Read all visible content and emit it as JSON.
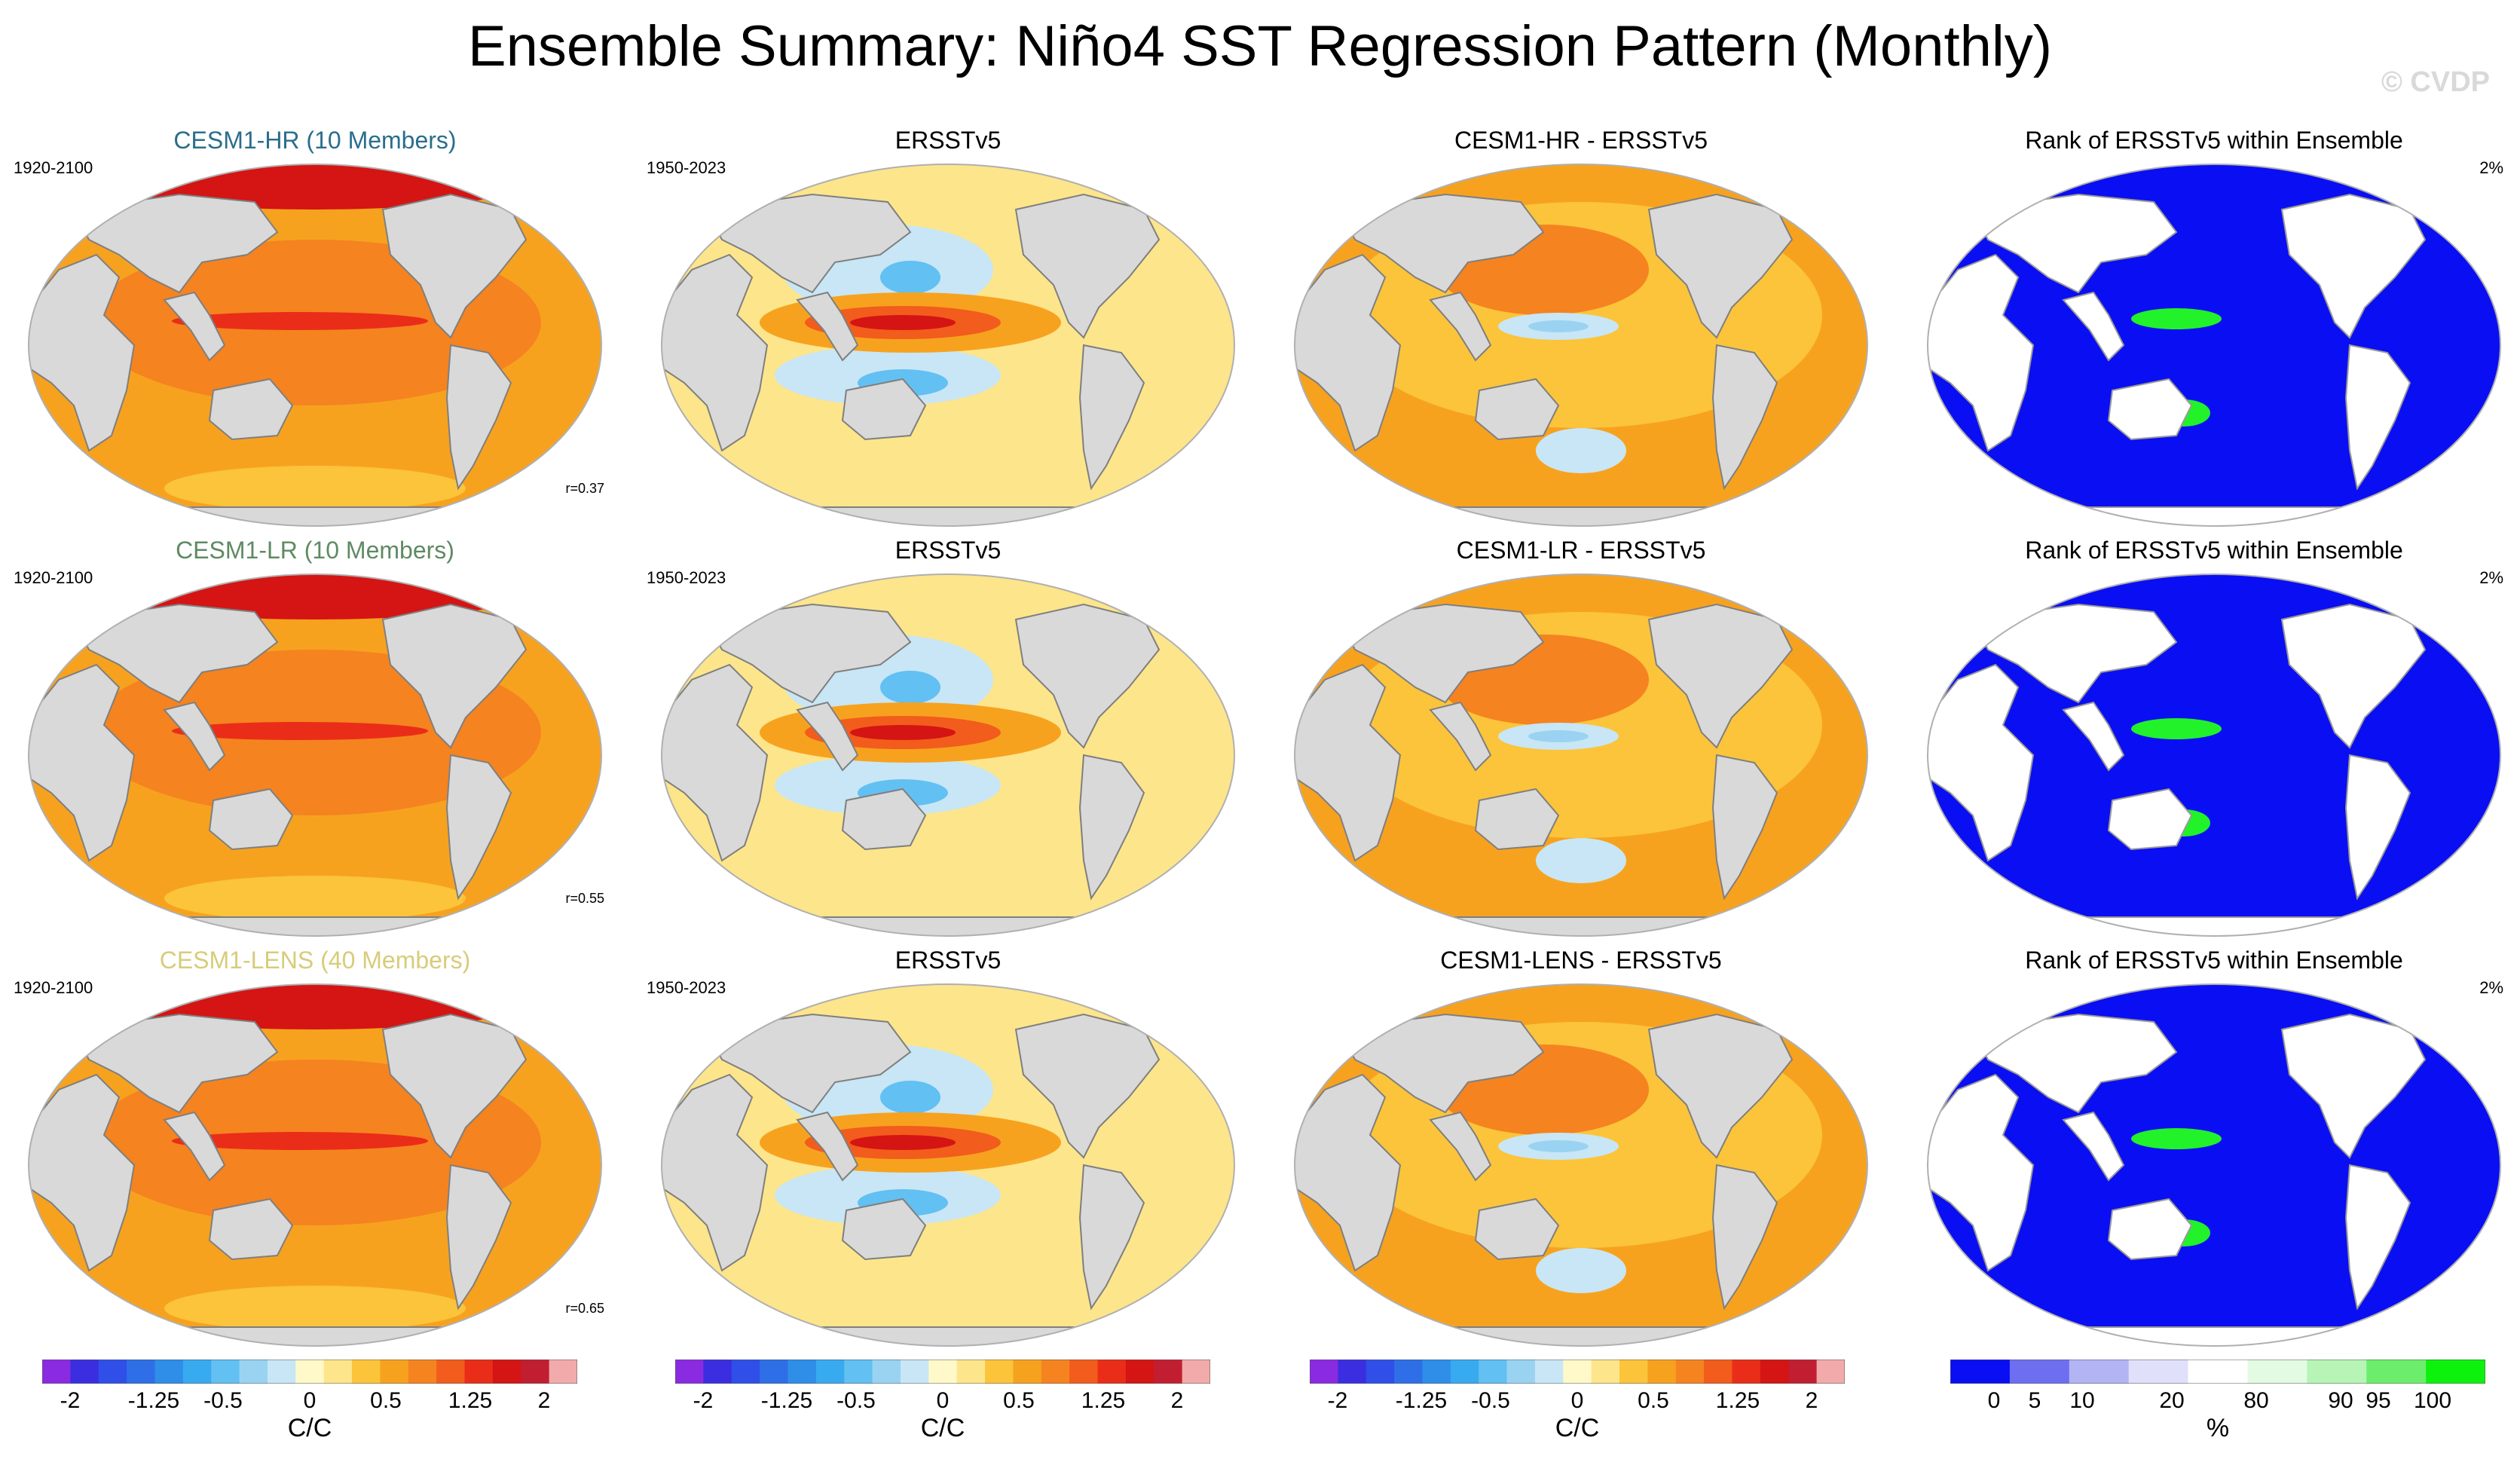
{
  "title": "Ensemble Summary: Niño4 SST Regression Pattern (Monthly)",
  "watermark": "© CVDP",
  "rows": [
    {
      "model_title": "CESM1-HR (10 Members)",
      "model_title_color": "#2a6e8c",
      "model_years": "1920-2100",
      "correlation": "r=0.37",
      "obs_title": "ERSSTv5",
      "obs_years": "1950-2023",
      "diff_title": "CESM1-HR - ERSSTv5",
      "rank_title": "Rank of ERSSTv5 within Ensemble",
      "rank_pct": "2%"
    },
    {
      "model_title": "CESM1-LR (10 Members)",
      "model_title_color": "#5f8a63",
      "model_years": "1920-2100",
      "correlation": "r=0.55",
      "obs_title": "ERSSTv5",
      "obs_years": "1950-2023",
      "diff_title": "CESM1-LR - ERSSTv5",
      "rank_title": "Rank of ERSSTv5 within Ensemble",
      "rank_pct": "2%"
    },
    {
      "model_title": "CESM1-LENS (40 Members)",
      "model_title_color": "#d8cc7a",
      "model_years": "1920-2100",
      "correlation": "r=0.65",
      "obs_title": "ERSSTv5",
      "obs_years": "1950-2023",
      "diff_title": "CESM1-LENS - ERSSTv5",
      "rank_title": "Rank of ERSSTv5 within Ensemble",
      "rank_pct": "2%"
    }
  ],
  "colorbar_sst": {
    "units": "C/C",
    "ticks": [
      "-2",
      "-1.25",
      "-0.5",
      "0",
      "0.5",
      "1.25",
      "2"
    ],
    "colors": [
      "#8a2be2",
      "#3a2ee0",
      "#2f4fe8",
      "#2e6fe8",
      "#2e8ee8",
      "#38aaef",
      "#62c0f2",
      "#9ad3f2",
      "#c8e6f5",
      "#fff9c9",
      "#fde58b",
      "#fbc43a",
      "#f7a21f",
      "#f58320",
      "#f25c1c",
      "#ea2d18",
      "#d51414",
      "#c21e32",
      "#f2aaaa"
    ]
  },
  "colorbar_rank": {
    "units": "%",
    "ticks": [
      "0",
      "5",
      "10",
      "20",
      "80",
      "90",
      "95",
      "100"
    ],
    "colors": [
      "#0a0ef2",
      "#6d6ff0",
      "#b3b4f4",
      "#e0e0fb",
      "#ffffff",
      "#e3fbe3",
      "#b7f5b7",
      "#6cee6c",
      "#0df20d"
    ]
  },
  "map_colors": {
    "land": "#d9d9d9",
    "coast": "#7f7f7f",
    "rank_ocean": "#0a0ef2",
    "rank_high": "#22f22a"
  }
}
